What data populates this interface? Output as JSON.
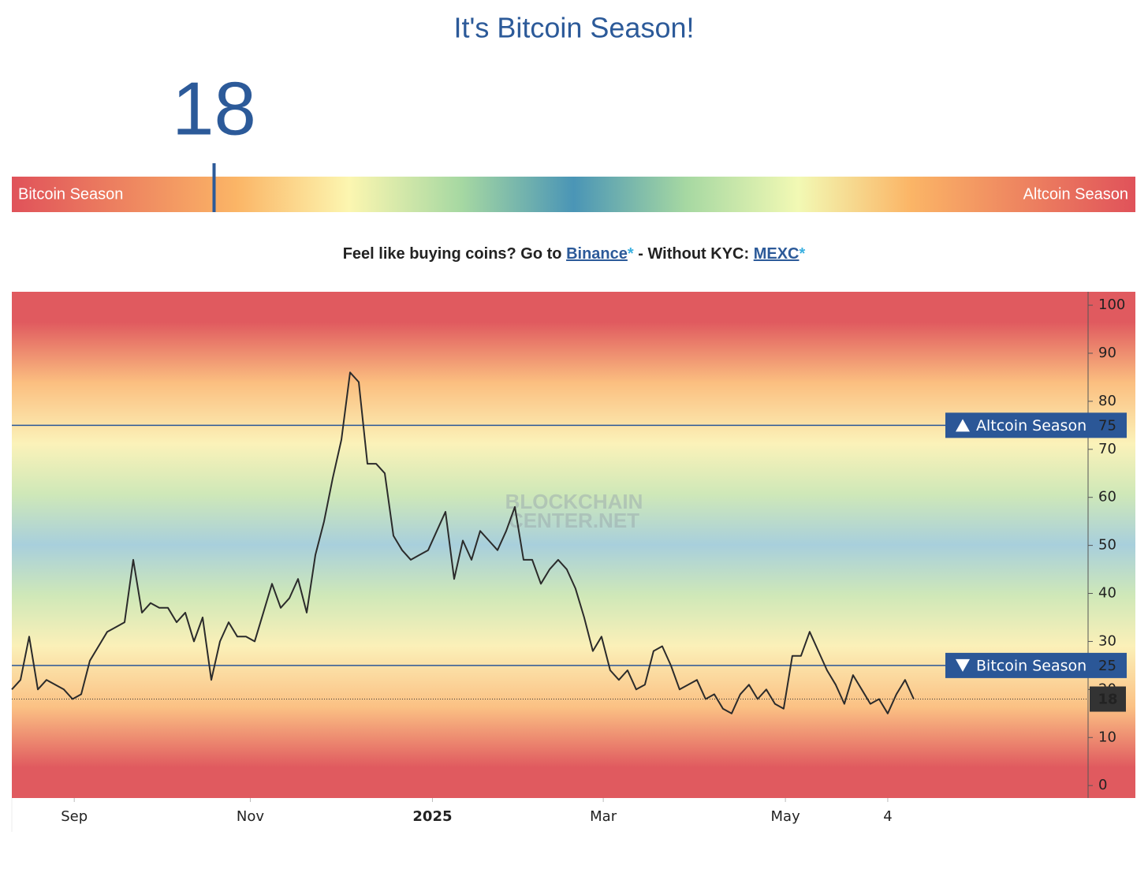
{
  "header": {
    "title": "It's Bitcoin Season!"
  },
  "gauge": {
    "index": 18,
    "range": [
      0,
      100
    ],
    "left_label": "Bitcoin Season",
    "right_label": "Altcoin Season"
  },
  "promo": {
    "prefix": "Feel like buying coins? Go to ",
    "link1": "Binance",
    "link1_mark": "*",
    "middle": " - Without KYC: ",
    "link2": "MEXC",
    "link2_mark": "*"
  },
  "chart_data": {
    "type": "line",
    "watermark": [
      "BLOCKCHAIN",
      "CENTER.NET"
    ],
    "series": [
      {
        "color": "#2b2b2b",
        "values": [
          20,
          22,
          31,
          20,
          22,
          21,
          20,
          18,
          19,
          26,
          29,
          32,
          33,
          34,
          47,
          36,
          38,
          37,
          37,
          34,
          36,
          30,
          35,
          22,
          30,
          34,
          31,
          31,
          30,
          36,
          42,
          37,
          39,
          43,
          36,
          48,
          55,
          64,
          72,
          86,
          84,
          67,
          67,
          65,
          52,
          49,
          47,
          48,
          49,
          53,
          57,
          43,
          51,
          47,
          53,
          51,
          49,
          53,
          58,
          47,
          47,
          42,
          45,
          47,
          45,
          41,
          35,
          28,
          31,
          24,
          22,
          24,
          20,
          21,
          28,
          29,
          25,
          20,
          21,
          22,
          18,
          19,
          16,
          15,
          19,
          21,
          18,
          20,
          17,
          16,
          27,
          27,
          32,
          28,
          24,
          21,
          17,
          23,
          20,
          17,
          18,
          15,
          19,
          22,
          18
        ]
      }
    ],
    "xlim": [
      0,
      124.1
    ],
    "xticks": [
      {
        "value": 7.2,
        "label": "Sep"
      },
      {
        "value": 27.5,
        "label": "Nov"
      },
      {
        "value": 48.5,
        "label": "2025"
      },
      {
        "value": 68.2,
        "label": "Mar"
      },
      {
        "value": 89.2,
        "label": "May"
      },
      {
        "value": 101,
        "label": "4"
      }
    ],
    "ylim": [
      -2.6,
      102.8
    ],
    "yticks": [
      0,
      10,
      20,
      30,
      40,
      50,
      60,
      70,
      80,
      90,
      100
    ],
    "thresholds": [
      {
        "label": "Altcoin Season",
        "value": 75
      },
      {
        "label": "Bitcoin Season",
        "value": 25
      }
    ]
  }
}
